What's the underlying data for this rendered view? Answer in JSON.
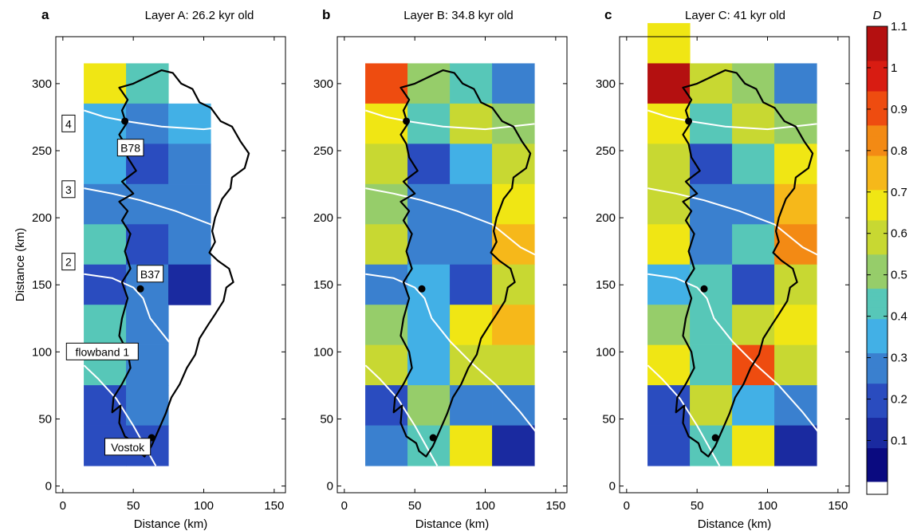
{
  "figure": {
    "xlabel": "Distance (km)",
    "ylabel": "Distance (km)"
  },
  "chart_data": [
    {
      "type": "heatmap",
      "panel": "a",
      "title": "Layer A: 26.2 kyr old",
      "xlabel": "Distance (km)",
      "ylabel": "Distance (km)",
      "xlim": [
        -5,
        158
      ],
      "ylim": [
        -5,
        335
      ],
      "xticks": [
        0,
        50,
        100,
        150
      ],
      "yticks": [
        0,
        50,
        100,
        150,
        200,
        250,
        300
      ],
      "cell_size_km": 30,
      "cells": [
        [
          15,
          285,
          0.65
        ],
        [
          45,
          285,
          0.4
        ],
        [
          15,
          255,
          0.38
        ],
        [
          45,
          255,
          0.28
        ],
        [
          75,
          255,
          0.36
        ],
        [
          15,
          225,
          0.38
        ],
        [
          45,
          225,
          0.22
        ],
        [
          75,
          225,
          0.24
        ],
        [
          15,
          195,
          0.3
        ],
        [
          45,
          195,
          0.24
        ],
        [
          75,
          195,
          0.24
        ],
        [
          15,
          165,
          0.4
        ],
        [
          45,
          165,
          0.22
        ],
        [
          75,
          165,
          0.24
        ],
        [
          15,
          135,
          0.2
        ],
        [
          45,
          135,
          0.25
        ],
        [
          75,
          135,
          0.15
        ],
        [
          15,
          105,
          0.4
        ],
        [
          45,
          105,
          0.3
        ],
        [
          15,
          75,
          0.4
        ],
        [
          45,
          75,
          0.28
        ],
        [
          15,
          45,
          0.16
        ],
        [
          45,
          45,
          0.3
        ],
        [
          15,
          15,
          0.18
        ],
        [
          45,
          15,
          0.22
        ]
      ],
      "annotations": [
        {
          "text": "4",
          "x": 4,
          "y": 270
        },
        {
          "text": "3",
          "x": 4,
          "y": 221
        },
        {
          "text": "2",
          "x": 4,
          "y": 167
        },
        {
          "text": "flowband 1",
          "x": 28,
          "y": 100
        },
        {
          "text": "B78",
          "x": 48,
          "y": 252
        },
        {
          "text": "B37",
          "x": 62,
          "y": 158
        },
        {
          "text": "Vostok",
          "x": 46,
          "y": 29
        }
      ]
    },
    {
      "type": "heatmap",
      "panel": "b",
      "title": "Layer B: 34.8 kyr old",
      "xlabel": "Distance (km)",
      "ylabel": "",
      "xlim": [
        -5,
        158
      ],
      "ylim": [
        -5,
        335
      ],
      "xticks": [
        0,
        50,
        100,
        150
      ],
      "yticks": [
        0,
        50,
        100,
        150,
        200,
        250,
        300
      ],
      "cell_size_km": 30,
      "cells": [
        [
          15,
          285,
          0.93
        ],
        [
          45,
          285,
          0.52
        ],
        [
          75,
          285,
          0.4
        ],
        [
          105,
          285,
          0.25
        ],
        [
          15,
          255,
          0.65
        ],
        [
          45,
          255,
          0.4
        ],
        [
          75,
          255,
          0.58
        ],
        [
          105,
          255,
          0.48
        ],
        [
          15,
          225,
          0.58
        ],
        [
          45,
          225,
          0.2
        ],
        [
          75,
          225,
          0.35
        ],
        [
          105,
          225,
          0.58
        ],
        [
          15,
          195,
          0.52
        ],
        [
          45,
          195,
          0.26
        ],
        [
          75,
          195,
          0.28
        ],
        [
          105,
          195,
          0.7
        ],
        [
          15,
          165,
          0.62
        ],
        [
          45,
          165,
          0.3
        ],
        [
          75,
          165,
          0.3
        ],
        [
          105,
          165,
          0.72
        ],
        [
          15,
          135,
          0.28
        ],
        [
          45,
          135,
          0.38
        ],
        [
          75,
          135,
          0.2
        ],
        [
          105,
          135,
          0.55
        ],
        [
          15,
          105,
          0.48
        ],
        [
          45,
          105,
          0.38
        ],
        [
          75,
          105,
          0.65
        ],
        [
          105,
          105,
          0.75
        ],
        [
          15,
          75,
          0.58
        ],
        [
          45,
          75,
          0.36
        ],
        [
          75,
          75,
          0.62
        ],
        [
          105,
          75,
          0.62
        ],
        [
          15,
          45,
          0.22
        ],
        [
          45,
          45,
          0.5
        ],
        [
          75,
          45,
          0.28
        ],
        [
          105,
          45,
          0.25
        ],
        [
          15,
          15,
          0.25
        ],
        [
          45,
          15,
          0.4
        ],
        [
          75,
          15,
          0.64
        ],
        [
          105,
          15,
          0.08
        ]
      ]
    },
    {
      "type": "heatmap",
      "panel": "c",
      "title": "Layer C: 41 kyr old",
      "xlabel": "Distance (km)",
      "ylabel": "",
      "xlim": [
        -5,
        158
      ],
      "ylim": [
        -5,
        335
      ],
      "xticks": [
        0,
        50,
        100,
        150
      ],
      "yticks": [
        0,
        50,
        100,
        150,
        200,
        250,
        300
      ],
      "cell_size_km": 30,
      "cells": [
        [
          15,
          315,
          0.65
        ],
        [
          15,
          285,
          1.05
        ],
        [
          45,
          285,
          0.6
        ],
        [
          75,
          285,
          0.52
        ],
        [
          105,
          285,
          0.28
        ],
        [
          15,
          255,
          0.68
        ],
        [
          45,
          255,
          0.42
        ],
        [
          75,
          255,
          0.58
        ],
        [
          105,
          255,
          0.52
        ],
        [
          15,
          225,
          0.62
        ],
        [
          45,
          225,
          0.22
        ],
        [
          75,
          225,
          0.4
        ],
        [
          105,
          225,
          0.65
        ],
        [
          15,
          195,
          0.58
        ],
        [
          45,
          195,
          0.28
        ],
        [
          75,
          195,
          0.3
        ],
        [
          105,
          195,
          0.76
        ],
        [
          15,
          165,
          0.7
        ],
        [
          45,
          165,
          0.3
        ],
        [
          75,
          165,
          0.4
        ],
        [
          105,
          165,
          0.8
        ],
        [
          15,
          135,
          0.35
        ],
        [
          45,
          135,
          0.45
        ],
        [
          75,
          135,
          0.22
        ],
        [
          105,
          135,
          0.62
        ],
        [
          15,
          105,
          0.48
        ],
        [
          45,
          105,
          0.4
        ],
        [
          75,
          105,
          0.62
        ],
        [
          105,
          105,
          0.7
        ],
        [
          15,
          75,
          0.66
        ],
        [
          45,
          75,
          0.4
        ],
        [
          75,
          75,
          0.88
        ],
        [
          105,
          75,
          0.58
        ],
        [
          15,
          45,
          0.22
        ],
        [
          45,
          45,
          0.55
        ],
        [
          75,
          45,
          0.32
        ],
        [
          105,
          45,
          0.24
        ],
        [
          15,
          15,
          0.2
        ],
        [
          45,
          15,
          0.4
        ],
        [
          75,
          15,
          0.7
        ],
        [
          105,
          15,
          0.1
        ]
      ]
    }
  ],
  "colorbar": {
    "label": "D",
    "min": 0,
    "max": 1.1,
    "ticks": [
      "0.1",
      "0.2",
      "0.3",
      "0.4",
      "0.5",
      "0.6",
      "0.7",
      "0.8",
      "0.9",
      "1",
      "1.1"
    ],
    "colors": [
      "#0a0a80",
      "#1a2aa0",
      "#2a4cbf",
      "#3a80cf",
      "#42b0e6",
      "#57c7b8",
      "#96cd6a",
      "#c8d832",
      "#f0e614",
      "#f6b81a",
      "#f38a14",
      "#ee4c10",
      "#d81c12",
      "#b41010"
    ]
  },
  "panel_letters": [
    "a",
    "b",
    "c"
  ]
}
